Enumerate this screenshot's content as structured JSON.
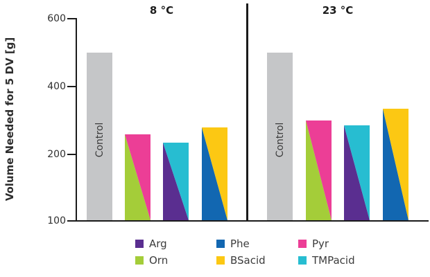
{
  "chart_data": {
    "type": "bar",
    "title": "",
    "ylabel": "Volume Needed for 5 DV [g]",
    "yticks": [
      600,
      400,
      200,
      100
    ],
    "ylim": [
      100,
      600
    ],
    "axis_note": "stylized axis: ticks 600/400/200/100 equally spaced",
    "split_style": "split bars are divided diagonally from top-left to bottom-right; first component fills the lower-left triangle, second component the upper-right triangle",
    "colors": {
      "control": "#c5c6c8",
      "Arg": "#5a2e90",
      "Orn": "#a4cd39",
      "Phe": "#1267b1",
      "BSacid": "#fcc813",
      "Pyr": "#ec3e96",
      "TMPacid": "#27bdd1",
      "axis": "#1a1a1a",
      "text": "#3a3a3a"
    },
    "panels": [
      {
        "title": "8 °C",
        "bars": [
          {
            "type": "solid",
            "name": "Control",
            "value": 500
          },
          {
            "type": "split",
            "components": [
              "Orn",
              "Pyr"
            ],
            "value": 260
          },
          {
            "type": "split",
            "components": [
              "Arg",
              "TMPacid"
            ],
            "value": 235
          },
          {
            "type": "split",
            "components": [
              "Phe",
              "BSacid"
            ],
            "value": 280
          }
        ]
      },
      {
        "title": "23 °C",
        "bars": [
          {
            "type": "solid",
            "name": "Control",
            "value": 500
          },
          {
            "type": "split",
            "components": [
              "Orn",
              "Pyr"
            ],
            "value": 300
          },
          {
            "type": "split",
            "components": [
              "Arg",
              "TMPacid"
            ],
            "value": 285
          },
          {
            "type": "split",
            "components": [
              "Phe",
              "BSacid"
            ],
            "value": 335
          }
        ]
      }
    ],
    "legend": [
      {
        "label": "Arg",
        "color_key": "Arg"
      },
      {
        "label": "Orn",
        "color_key": "Orn"
      },
      {
        "label": "Phe",
        "color_key": "Phe"
      },
      {
        "label": "BSacid",
        "color_key": "BSacid"
      },
      {
        "label": "Pyr",
        "color_key": "Pyr"
      },
      {
        "label": "TMPacid",
        "color_key": "TMPacid"
      }
    ]
  }
}
